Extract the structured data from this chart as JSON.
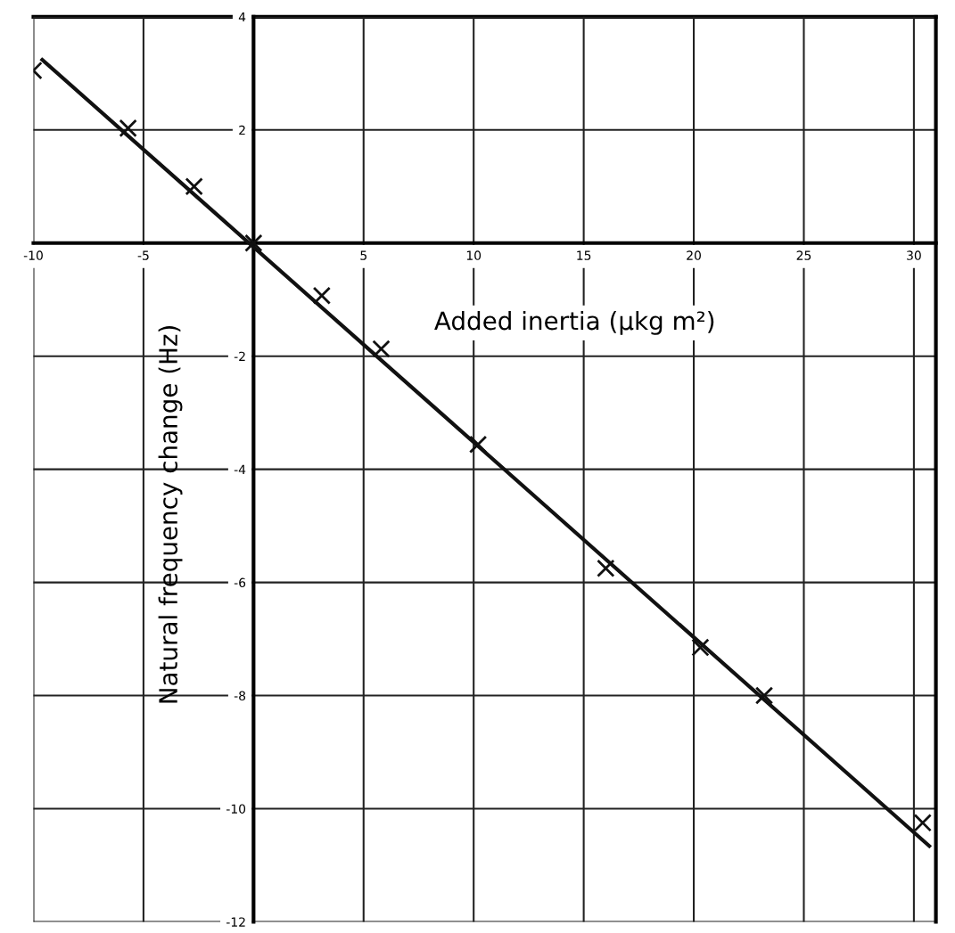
{
  "chart_data": {
    "type": "scatter",
    "xlabel": "Added inertia (μkg m²)",
    "ylabel": "Natural frequency change (Hz)",
    "xlim": [
      -10,
      31
    ],
    "ylim": [
      -12,
      4
    ],
    "xticks": [
      -10,
      -5,
      5,
      10,
      15,
      20,
      25,
      30
    ],
    "yticks": [
      4,
      2,
      -2,
      -4,
      -6,
      -8,
      -10,
      -12
    ],
    "grid": true,
    "legend": false,
    "series": [
      {
        "color": "#111111",
        "marker": "cross",
        "x": [
          -10,
          -5.7,
          -2.7,
          0,
          3.1,
          5.8,
          10.2,
          16.0,
          20.3,
          23.2,
          30.4
        ],
        "values": [
          3.05,
          2.03,
          1.0,
          0,
          -0.93,
          -1.87,
          -3.56,
          -5.75,
          -7.15,
          -8.0,
          -10.25
        ]
      },
      {
        "type": "line",
        "color": "#111111",
        "marker": "none",
        "line_style": "solid",
        "x": [
          -9.6,
          30.7
        ],
        "values": [
          3.24,
          -10.66
        ]
      }
    ]
  }
}
